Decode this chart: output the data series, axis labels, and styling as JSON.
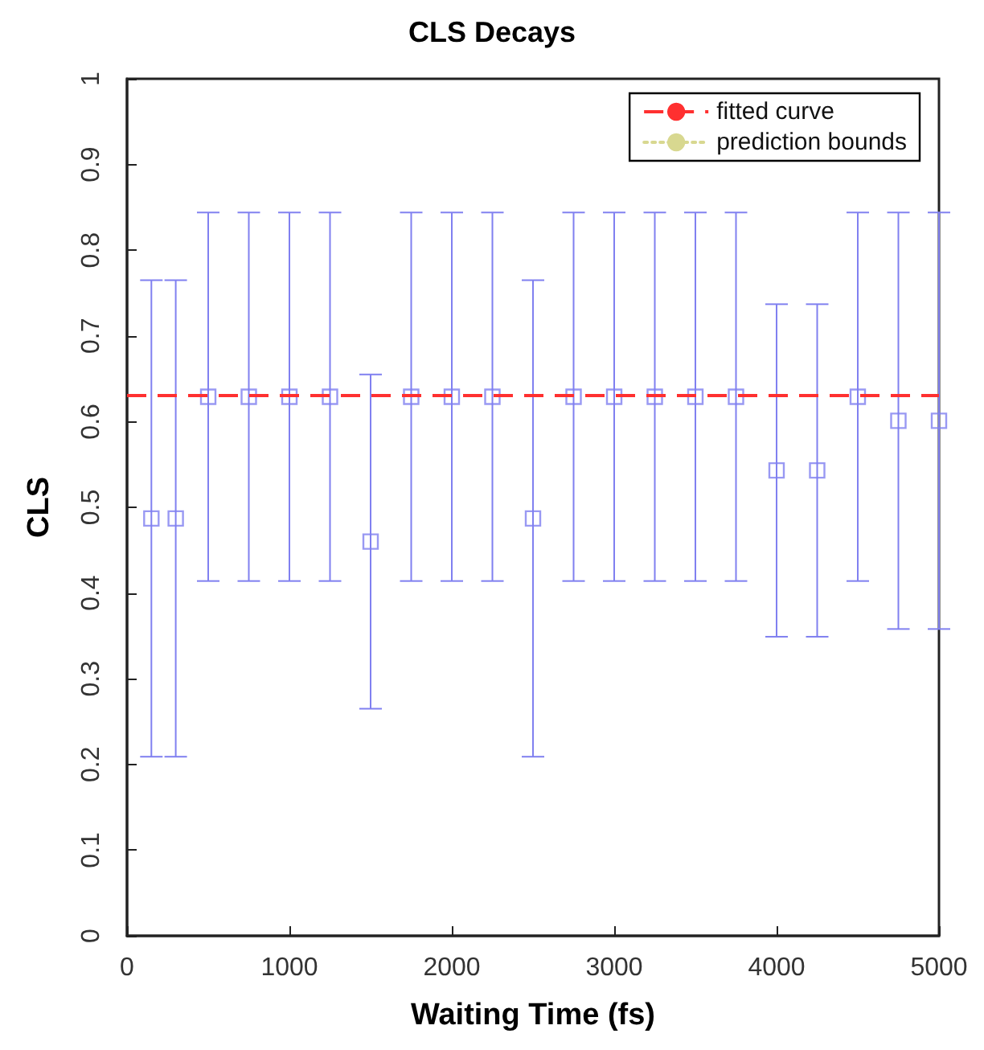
{
  "chart_data": {
    "type": "scatter",
    "title": "CLS Decays",
    "xlabel": "Waiting Time (fs)",
    "ylabel": "CLS",
    "x": [
      150,
      300,
      500,
      750,
      1000,
      1250,
      1500,
      1750,
      2000,
      2250,
      2500,
      2750,
      3000,
      3250,
      3500,
      3750,
      4000,
      4250,
      4500,
      4750,
      5000
    ],
    "series": [
      {
        "color": "#8080f0",
        "marker": "square",
        "values": [
          0.487,
          0.487,
          0.629,
          0.629,
          0.629,
          0.629,
          0.46,
          0.629,
          0.629,
          0.629,
          0.487,
          0.629,
          0.629,
          0.629,
          0.629,
          0.629,
          0.543,
          0.543,
          0.629,
          0.601,
          0.601
        ],
        "errors": [
          0.278,
          0.278,
          0.215,
          0.215,
          0.215,
          0.215,
          0.195,
          0.215,
          0.215,
          0.215,
          0.278,
          0.215,
          0.215,
          0.215,
          0.215,
          0.215,
          0.194,
          0.194,
          0.215,
          0.243,
          0.243
        ]
      },
      {
        "type": "line",
        "name": "prediction bounds",
        "color": "#d8d890",
        "line_style": "dotted",
        "values": [
          null,
          null,
          null,
          null,
          null,
          null,
          null,
          null,
          null,
          null,
          null,
          null,
          null,
          null,
          null,
          null,
          null,
          null,
          null,
          null,
          null
        ]
      }
    ],
    "ref_lines": [
      {
        "axis": "y",
        "value": 0.629,
        "label": "fitted curve",
        "color": "#ff3030",
        "line_style": "dashed"
      }
    ],
    "xlim": [
      0,
      5000
    ],
    "xticks": [
      0,
      1000,
      2000,
      3000,
      4000,
      5000
    ],
    "ylim": [
      0,
      1
    ],
    "yticks": [
      0,
      0.1,
      0.2,
      0.3,
      0.4,
      0.5,
      0.6,
      0.7,
      0.8,
      0.9,
      1
    ],
    "grid": false,
    "legend": "top right"
  }
}
